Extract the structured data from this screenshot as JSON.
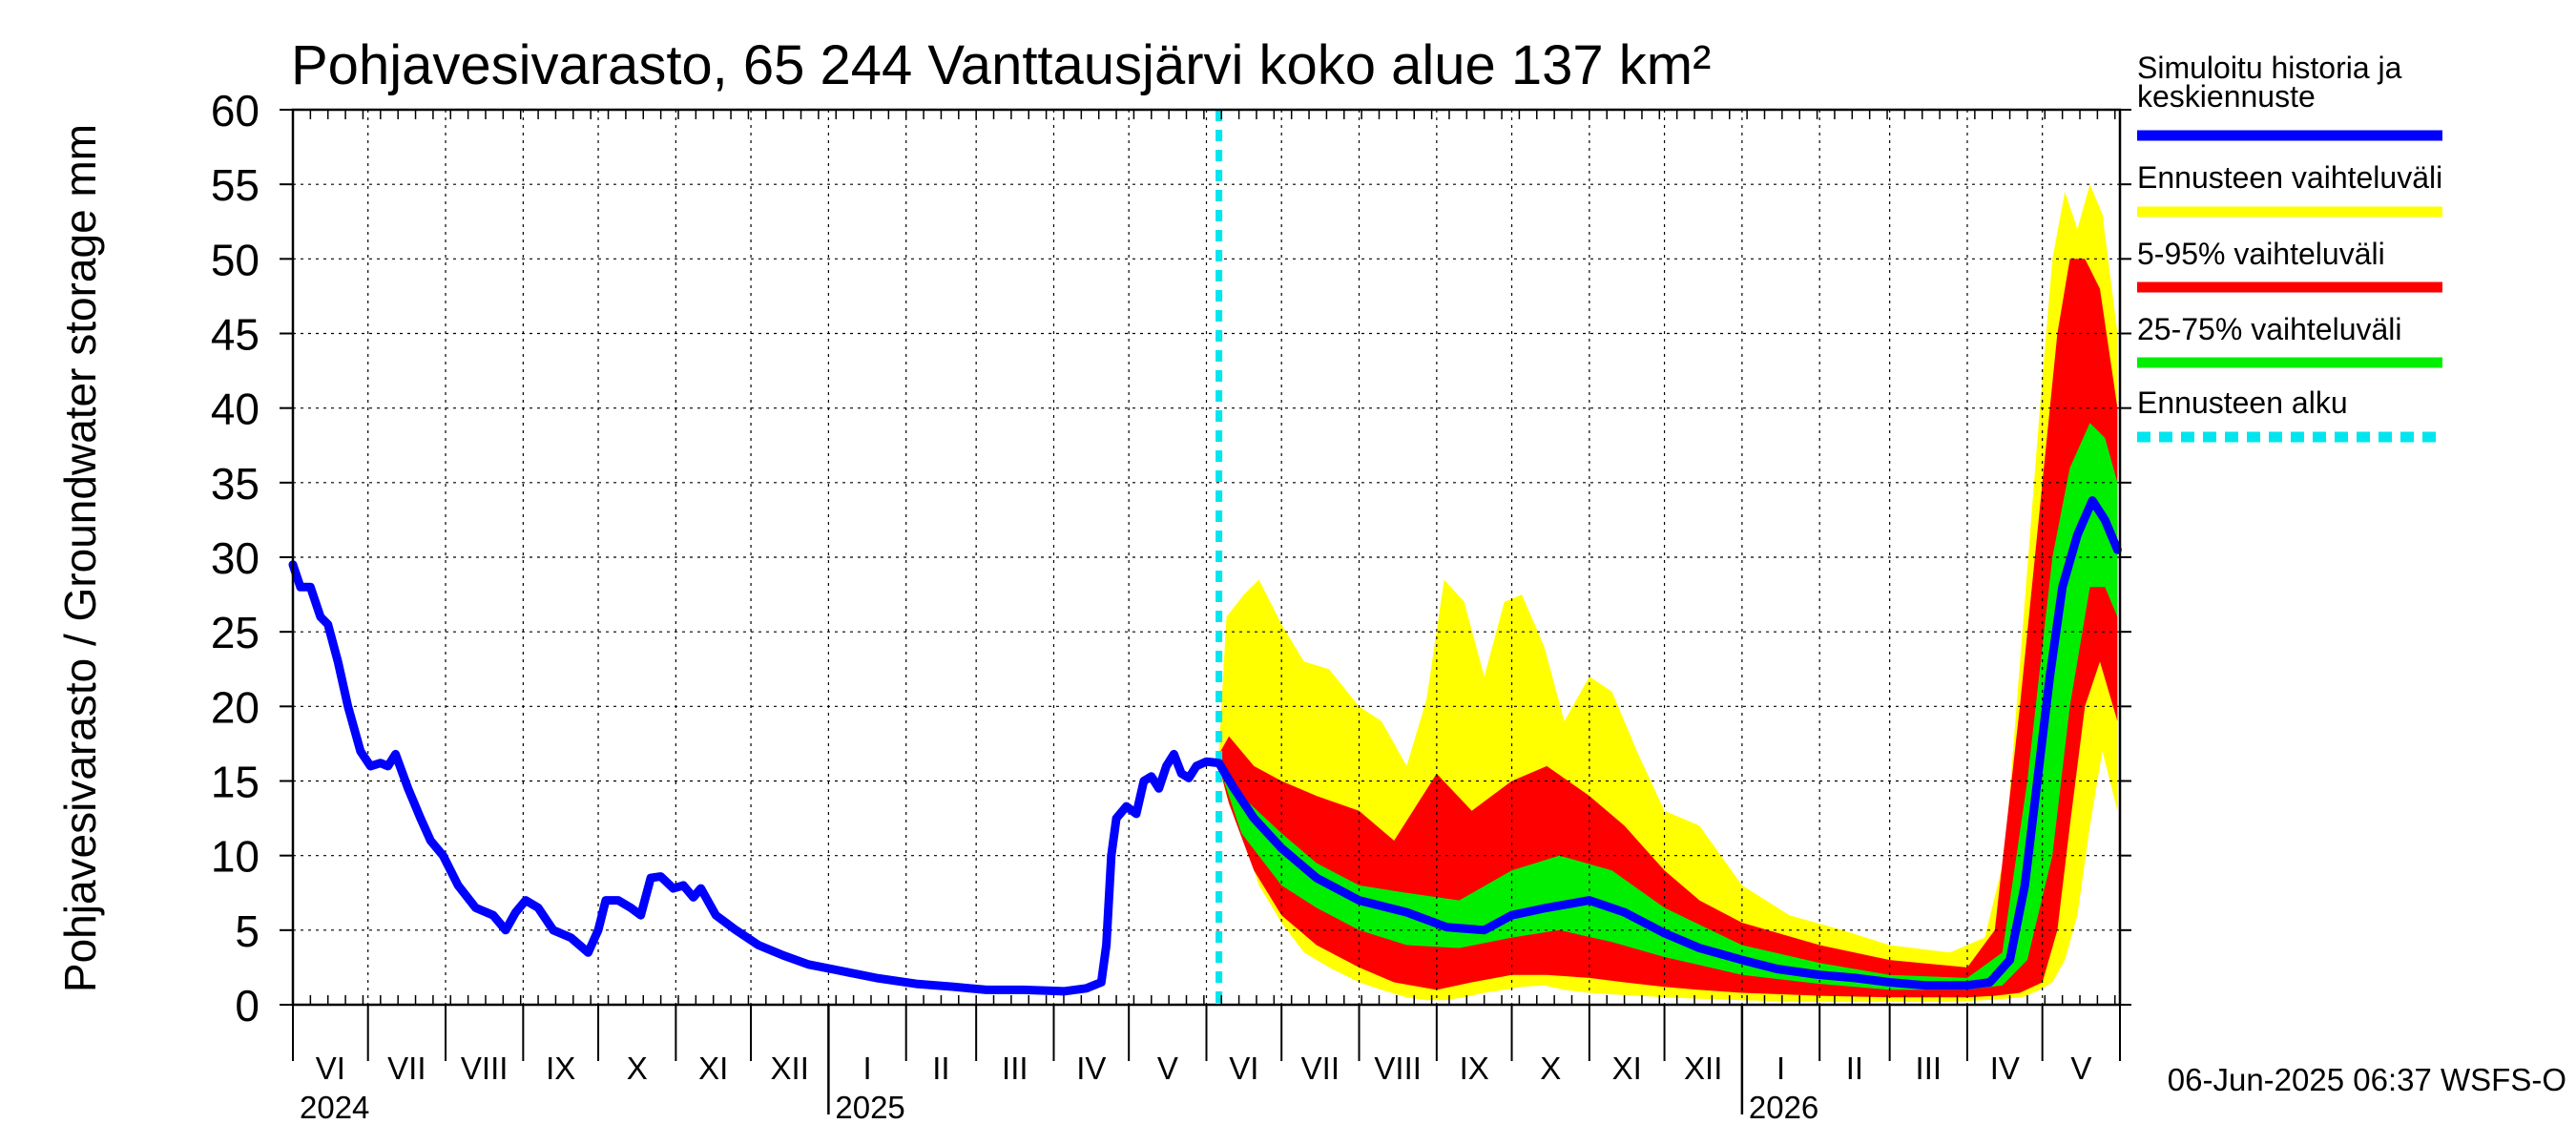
{
  "chart_data": {
    "type": "area",
    "title": "Pohjavesivarasto, 65 244 Vanttausjärvi koko alue 137 km²",
    "ylabel": "Pohjavesivarasto / Groundwater storage   mm",
    "xlabel": "",
    "ylim": [
      0,
      60
    ],
    "yticks": [
      "0",
      "5",
      "10",
      "15",
      "20",
      "25",
      "30",
      "35",
      "40",
      "45",
      "50",
      "55",
      "60"
    ],
    "grid": true,
    "legend_position": "right",
    "x_start": "2024-06-01",
    "x_end": "2026-06-01",
    "forecast_start": "2025-06-06",
    "month_labels": [
      {
        "date": "2024-06-01",
        "label": "VI"
      },
      {
        "date": "2024-07-01",
        "label": "VII"
      },
      {
        "date": "2024-08-01",
        "label": "VIII"
      },
      {
        "date": "2024-09-01",
        "label": "IX"
      },
      {
        "date": "2024-10-01",
        "label": "X"
      },
      {
        "date": "2024-11-01",
        "label": "XI"
      },
      {
        "date": "2024-12-01",
        "label": "XII"
      },
      {
        "date": "2025-01-01",
        "label": "I"
      },
      {
        "date": "2025-02-01",
        "label": "II"
      },
      {
        "date": "2025-03-01",
        "label": "III"
      },
      {
        "date": "2025-04-01",
        "label": "IV"
      },
      {
        "date": "2025-05-01",
        "label": "V"
      },
      {
        "date": "2025-06-01",
        "label": "VI"
      },
      {
        "date": "2025-07-01",
        "label": "VII"
      },
      {
        "date": "2025-08-01",
        "label": "VIII"
      },
      {
        "date": "2025-09-01",
        "label": "IX"
      },
      {
        "date": "2025-10-01",
        "label": "X"
      },
      {
        "date": "2025-11-01",
        "label": "XI"
      },
      {
        "date": "2025-12-01",
        "label": "XII"
      },
      {
        "date": "2026-01-01",
        "label": "I"
      },
      {
        "date": "2026-02-01",
        "label": "II"
      },
      {
        "date": "2026-03-01",
        "label": "III"
      },
      {
        "date": "2026-04-01",
        "label": "IV"
      },
      {
        "date": "2026-05-01",
        "label": "V"
      }
    ],
    "year_labels": [
      {
        "date": "2024-06-01",
        "label": "2024"
      },
      {
        "date": "2025-01-01",
        "label": "2025"
      },
      {
        "date": "2026-01-01",
        "label": "2026"
      }
    ],
    "series": [
      {
        "name": "Simuloitu historia ja keskiennuste",
        "type": "line",
        "color": "#0000ff",
        "points": [
          [
            "2024-06-01",
            29.5
          ],
          [
            "2024-06-04",
            28.0
          ],
          [
            "2024-06-08",
            28.0
          ],
          [
            "2024-06-12",
            26.0
          ],
          [
            "2024-06-15",
            25.5
          ],
          [
            "2024-06-19",
            23.0
          ],
          [
            "2024-06-23",
            20.0
          ],
          [
            "2024-06-28",
            17.0
          ],
          [
            "2024-07-02",
            16.0
          ],
          [
            "2024-07-06",
            16.2
          ],
          [
            "2024-07-09",
            16.0
          ],
          [
            "2024-07-12",
            16.8
          ],
          [
            "2024-07-17",
            14.5
          ],
          [
            "2024-07-22",
            12.5
          ],
          [
            "2024-07-26",
            11.0
          ],
          [
            "2024-07-31",
            10.0
          ],
          [
            "2024-08-06",
            8.0
          ],
          [
            "2024-08-13",
            6.5
          ],
          [
            "2024-08-20",
            6.0
          ],
          [
            "2024-08-25",
            5.0
          ],
          [
            "2024-08-29",
            6.2
          ],
          [
            "2024-09-02",
            7.0
          ],
          [
            "2024-09-07",
            6.5
          ],
          [
            "2024-09-13",
            5.0
          ],
          [
            "2024-09-20",
            4.5
          ],
          [
            "2024-09-27",
            3.5
          ],
          [
            "2024-10-01",
            5.0
          ],
          [
            "2024-10-04",
            7.0
          ],
          [
            "2024-10-09",
            7.0
          ],
          [
            "2024-10-14",
            6.5
          ],
          [
            "2024-10-18",
            6.0
          ],
          [
            "2024-10-22",
            8.5
          ],
          [
            "2024-10-26",
            8.6
          ],
          [
            "2024-10-31",
            7.8
          ],
          [
            "2024-11-04",
            8.0
          ],
          [
            "2024-11-08",
            7.2
          ],
          [
            "2024-11-11",
            7.8
          ],
          [
            "2024-11-17",
            6.0
          ],
          [
            "2024-11-25",
            5.0
          ],
          [
            "2024-12-04",
            4.0
          ],
          [
            "2024-12-14",
            3.3
          ],
          [
            "2024-12-24",
            2.7
          ],
          [
            "2025-01-05",
            2.3
          ],
          [
            "2025-01-20",
            1.8
          ],
          [
            "2025-02-05",
            1.4
          ],
          [
            "2025-02-20",
            1.2
          ],
          [
            "2025-03-05",
            1.0
          ],
          [
            "2025-03-20",
            1.0
          ],
          [
            "2025-04-05",
            0.9
          ],
          [
            "2025-04-14",
            1.1
          ],
          [
            "2025-04-20",
            1.5
          ],
          [
            "2025-04-22",
            4.0
          ],
          [
            "2025-04-24",
            10.0
          ],
          [
            "2025-04-26",
            12.5
          ],
          [
            "2025-04-30",
            13.3
          ],
          [
            "2025-05-04",
            12.8
          ],
          [
            "2025-05-07",
            15.0
          ],
          [
            "2025-05-10",
            15.3
          ],
          [
            "2025-05-13",
            14.5
          ],
          [
            "2025-05-16",
            16.0
          ],
          [
            "2025-05-19",
            16.8
          ],
          [
            "2025-05-22",
            15.5
          ],
          [
            "2025-05-25",
            15.2
          ],
          [
            "2025-05-28",
            16.0
          ],
          [
            "2025-06-01",
            16.3
          ],
          [
            "2025-06-06",
            16.2
          ],
          [
            "2025-06-12",
            14.5
          ],
          [
            "2025-06-20",
            12.5
          ],
          [
            "2025-07-01",
            10.5
          ],
          [
            "2025-07-15",
            8.5
          ],
          [
            "2025-08-01",
            7.0
          ],
          [
            "2025-08-20",
            6.2
          ],
          [
            "2025-09-05",
            5.2
          ],
          [
            "2025-09-20",
            5.0
          ],
          [
            "2025-10-01",
            6.0
          ],
          [
            "2025-10-15",
            6.5
          ],
          [
            "2025-11-01",
            7.0
          ],
          [
            "2025-11-15",
            6.2
          ],
          [
            "2025-12-01",
            4.8
          ],
          [
            "2025-12-15",
            3.8
          ],
          [
            "2026-01-01",
            3.0
          ],
          [
            "2026-01-15",
            2.4
          ],
          [
            "2026-02-01",
            2.0
          ],
          [
            "2026-02-15",
            1.8
          ],
          [
            "2026-03-01",
            1.5
          ],
          [
            "2026-03-15",
            1.3
          ],
          [
            "2026-04-01",
            1.3
          ],
          [
            "2026-04-10",
            1.5
          ],
          [
            "2026-04-18",
            3.0
          ],
          [
            "2026-04-24",
            8.0
          ],
          [
            "2026-04-29",
            15.0
          ],
          [
            "2026-05-04",
            22.0
          ],
          [
            "2026-05-09",
            28.0
          ],
          [
            "2026-05-15",
            31.5
          ],
          [
            "2026-05-21",
            33.8
          ],
          [
            "2026-05-26",
            32.5
          ],
          [
            "2026-05-31",
            30.5
          ]
        ]
      },
      {
        "name": "Ennusteen vaihteluväli",
        "type": "band",
        "color": "#ffff00",
        "points": [
          [
            "2025-06-06",
            17.0,
            16.0
          ],
          [
            "2025-06-09",
            26.0,
            14.0
          ],
          [
            "2025-06-16",
            27.5,
            11.0
          ],
          [
            "2025-06-22",
            28.5,
            8.0
          ],
          [
            "2025-07-01",
            25.5,
            5.5
          ],
          [
            "2025-07-10",
            23.0,
            3.5
          ],
          [
            "2025-07-20",
            22.5,
            2.5
          ],
          [
            "2025-08-01",
            20.0,
            1.5
          ],
          [
            "2025-08-10",
            19.0,
            1.0
          ],
          [
            "2025-08-20",
            16.0,
            0.5
          ],
          [
            "2025-08-28",
            20.5,
            0.3
          ],
          [
            "2025-09-04",
            28.5,
            0.3
          ],
          [
            "2025-09-12",
            27.0,
            0.5
          ],
          [
            "2025-09-20",
            22.0,
            0.8
          ],
          [
            "2025-09-28",
            27.0,
            1.0
          ],
          [
            "2025-10-05",
            27.5,
            1.2
          ],
          [
            "2025-10-14",
            24.0,
            1.3
          ],
          [
            "2025-10-22",
            19.0,
            1.0
          ],
          [
            "2025-11-01",
            22.0,
            0.8
          ],
          [
            "2025-11-10",
            21.0,
            0.7
          ],
          [
            "2025-11-20",
            17.0,
            0.6
          ],
          [
            "2025-12-01",
            13.0,
            0.5
          ],
          [
            "2025-12-15",
            12.0,
            0.4
          ],
          [
            "2026-01-01",
            8.0,
            0.3
          ],
          [
            "2026-01-20",
            6.0,
            0.2
          ],
          [
            "2026-02-10",
            5.0,
            0.2
          ],
          [
            "2026-03-01",
            4.0,
            0.2
          ],
          [
            "2026-03-25",
            3.5,
            0.2
          ],
          [
            "2026-04-08",
            4.5,
            0.3
          ],
          [
            "2026-04-16",
            10.0,
            0.4
          ],
          [
            "2026-04-23",
            25.0,
            0.5
          ],
          [
            "2026-04-30",
            40.0,
            1.0
          ],
          [
            "2026-05-05",
            50.0,
            1.5
          ],
          [
            "2026-05-10",
            54.5,
            3.0
          ],
          [
            "2026-05-15",
            52.0,
            6.0
          ],
          [
            "2026-05-20",
            55.0,
            12.0
          ],
          [
            "2026-05-25",
            53.0,
            17.0
          ],
          [
            "2026-05-31",
            45.0,
            13.0
          ]
        ]
      },
      {
        "name": "5-95% vaihteluväli",
        "type": "band",
        "color": "#ff0000",
        "points": [
          [
            "2025-06-06",
            16.8,
            16.0
          ],
          [
            "2025-06-10",
            18.0,
            13.5
          ],
          [
            "2025-06-20",
            16.0,
            9.0
          ],
          [
            "2025-07-01",
            15.0,
            6.0
          ],
          [
            "2025-07-15",
            14.0,
            4.0
          ],
          [
            "2025-08-01",
            13.0,
            2.5
          ],
          [
            "2025-08-15",
            11.0,
            1.5
          ],
          [
            "2025-09-01",
            15.5,
            1.0
          ],
          [
            "2025-09-15",
            13.0,
            1.5
          ],
          [
            "2025-10-01",
            15.0,
            2.0
          ],
          [
            "2025-10-15",
            16.0,
            2.0
          ],
          [
            "2025-11-01",
            14.0,
            1.8
          ],
          [
            "2025-11-15",
            12.0,
            1.5
          ],
          [
            "2025-12-01",
            9.0,
            1.2
          ],
          [
            "2025-12-15",
            7.0,
            1.0
          ],
          [
            "2026-01-01",
            5.5,
            0.8
          ],
          [
            "2026-02-01",
            4.0,
            0.6
          ],
          [
            "2026-03-01",
            3.0,
            0.5
          ],
          [
            "2026-04-01",
            2.5,
            0.5
          ],
          [
            "2026-04-12",
            5.0,
            0.6
          ],
          [
            "2026-04-22",
            20.0,
            0.8
          ],
          [
            "2026-05-01",
            35.0,
            1.5
          ],
          [
            "2026-05-07",
            45.0,
            5.0
          ],
          [
            "2026-05-12",
            50.0,
            12.0
          ],
          [
            "2026-05-18",
            50.0,
            20.0
          ],
          [
            "2026-05-24",
            48.0,
            23.0
          ],
          [
            "2026-05-31",
            40.0,
            19.0
          ]
        ]
      },
      {
        "name": "25-75% vaihteluväli",
        "type": "band",
        "color": "#00ee00",
        "points": [
          [
            "2025-06-06",
            16.5,
            16.0
          ],
          [
            "2025-06-15",
            14.0,
            11.5
          ],
          [
            "2025-07-01",
            11.5,
            8.0
          ],
          [
            "2025-07-15",
            9.5,
            6.5
          ],
          [
            "2025-08-01",
            8.0,
            5.0
          ],
          [
            "2025-08-20",
            7.5,
            4.0
          ],
          [
            "2025-09-10",
            7.0,
            3.8
          ],
          [
            "2025-10-01",
            9.0,
            4.5
          ],
          [
            "2025-10-20",
            10.0,
            5.0
          ],
          [
            "2025-11-10",
            9.0,
            4.2
          ],
          [
            "2025-12-01",
            6.5,
            3.2
          ],
          [
            "2026-01-01",
            4.0,
            2.0
          ],
          [
            "2026-02-01",
            2.8,
            1.4
          ],
          [
            "2026-03-01",
            2.0,
            1.0
          ],
          [
            "2026-04-01",
            1.8,
            1.0
          ],
          [
            "2026-04-15",
            3.5,
            1.3
          ],
          [
            "2026-04-25",
            15.0,
            3.0
          ],
          [
            "2026-05-05",
            30.0,
            10.0
          ],
          [
            "2026-05-12",
            36.0,
            20.0
          ],
          [
            "2026-05-20",
            39.0,
            28.0
          ],
          [
            "2026-05-26",
            38.0,
            28.0
          ],
          [
            "2026-05-31",
            35.0,
            26.0
          ]
        ]
      }
    ],
    "legend": [
      {
        "label": "Simuloitu historia ja",
        "label2": "keskiennuste",
        "color": "#0000ff",
        "style": "solid"
      },
      {
        "label": "Ennusteen vaihteluväli",
        "label2": "",
        "color": "#ffff00",
        "style": "solid"
      },
      {
        "label": "5-95% vaihteluväli",
        "label2": "",
        "color": "#ff0000",
        "style": "solid"
      },
      {
        "label": "25-75% vaihteluväli",
        "label2": "",
        "color": "#00ee00",
        "style": "solid"
      },
      {
        "label": "Ennusteen alku",
        "label2": "",
        "color": "#00e5ee",
        "style": "dashed"
      }
    ],
    "forecast_line_color": "#00e5ee",
    "footer": "06-Jun-2025 06:37 WSFS-O"
  }
}
